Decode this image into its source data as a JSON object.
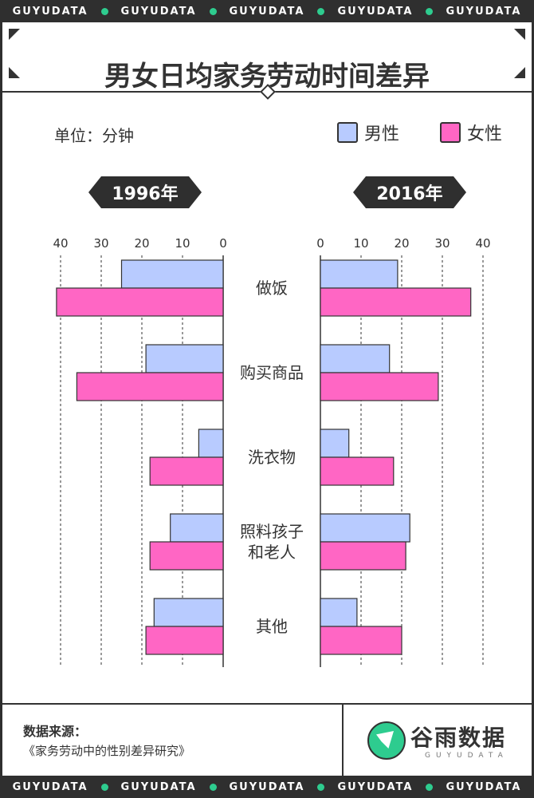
{
  "brand_strip": {
    "items": [
      "GUYUDATA",
      "GUYUDATA",
      "GUYUDATA",
      "GUYUDATA",
      "GUYUDATA"
    ]
  },
  "title": "男女日均家务劳动时间差异",
  "unit_label": "单位：分钟",
  "colors": {
    "male": "#b8cbff",
    "female": "#ff66c4",
    "dark": "#2f2f2f",
    "accent": "#2ecc8f"
  },
  "chart_data": {
    "type": "bar",
    "orientation": "horizontal-butterfly",
    "categories": [
      "做饭",
      "购买商品",
      "洗衣物",
      "照料孩子\n和老人",
      "其他"
    ],
    "unit": "分钟",
    "legend": [
      "男性",
      "女性"
    ],
    "panels": [
      {
        "label": "1996年",
        "direction": "right-to-left",
        "xlim": [
          0,
          40
        ],
        "ticks": [
          40,
          30,
          20,
          10,
          0
        ],
        "series": [
          {
            "name": "男性",
            "values": [
              25,
              19,
              6,
              13,
              17
            ]
          },
          {
            "name": "女性",
            "values": [
              41,
              36,
              18,
              18,
              19
            ]
          }
        ]
      },
      {
        "label": "2016年",
        "direction": "left-to-right",
        "xlim": [
          0,
          40
        ],
        "ticks": [
          0,
          10,
          20,
          30,
          40
        ],
        "series": [
          {
            "name": "男性",
            "values": [
              19,
              17,
              7,
              22,
              9
            ]
          },
          {
            "name": "女性",
            "values": [
              37,
              29,
              18,
              21,
              20
            ]
          }
        ]
      }
    ],
    "grid": "dashed-vertical"
  },
  "source": {
    "title": "数据来源：",
    "text": "《家务劳动中的性别差异研究》"
  },
  "logo": {
    "name": "谷雨数据",
    "sub": "GUYUDATA",
    "icon": "guyu-bird-logo-icon"
  }
}
